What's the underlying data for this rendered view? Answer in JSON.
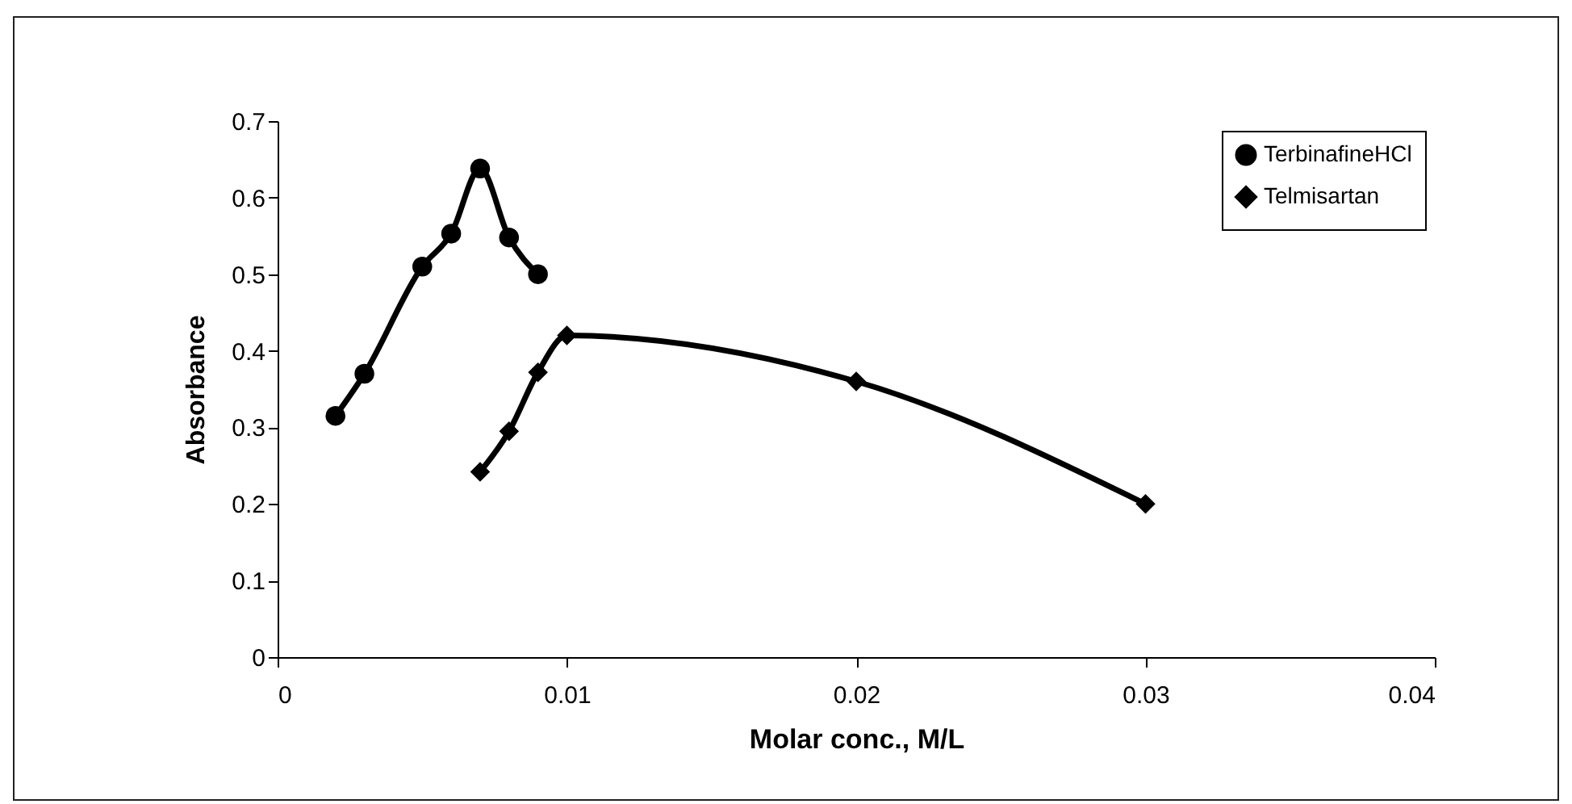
{
  "chart_data": {
    "type": "line",
    "xlabel": "Molar conc., M/L",
    "ylabel": "Absorbance",
    "xlim": [
      0,
      0.04
    ],
    "xticks": [
      0,
      0.01,
      0.02,
      0.03,
      0.04
    ],
    "ylim": [
      0,
      0.7
    ],
    "yticks": [
      0,
      0.1,
      0.2,
      0.3,
      0.4,
      0.5,
      0.6,
      0.7
    ],
    "grid": false,
    "legend": "top right",
    "line_style": "solid",
    "series": [
      {
        "name": "TerbinafineHCl",
        "color": "#000000",
        "marker": "circle",
        "x": [
          0.002,
          0.003,
          0.005,
          0.006,
          0.007,
          0.008,
          0.009
        ],
        "values": [
          0.315,
          0.37,
          0.51,
          0.553,
          0.638,
          0.548,
          0.5
        ]
      },
      {
        "name": "Telmisartan",
        "color": "#000000",
        "marker": "diamond",
        "x": [
          0.007,
          0.008,
          0.009,
          0.01,
          0.02,
          0.03
        ],
        "values": [
          0.242,
          0.295,
          0.372,
          0.42,
          0.36,
          0.2
        ]
      }
    ]
  }
}
